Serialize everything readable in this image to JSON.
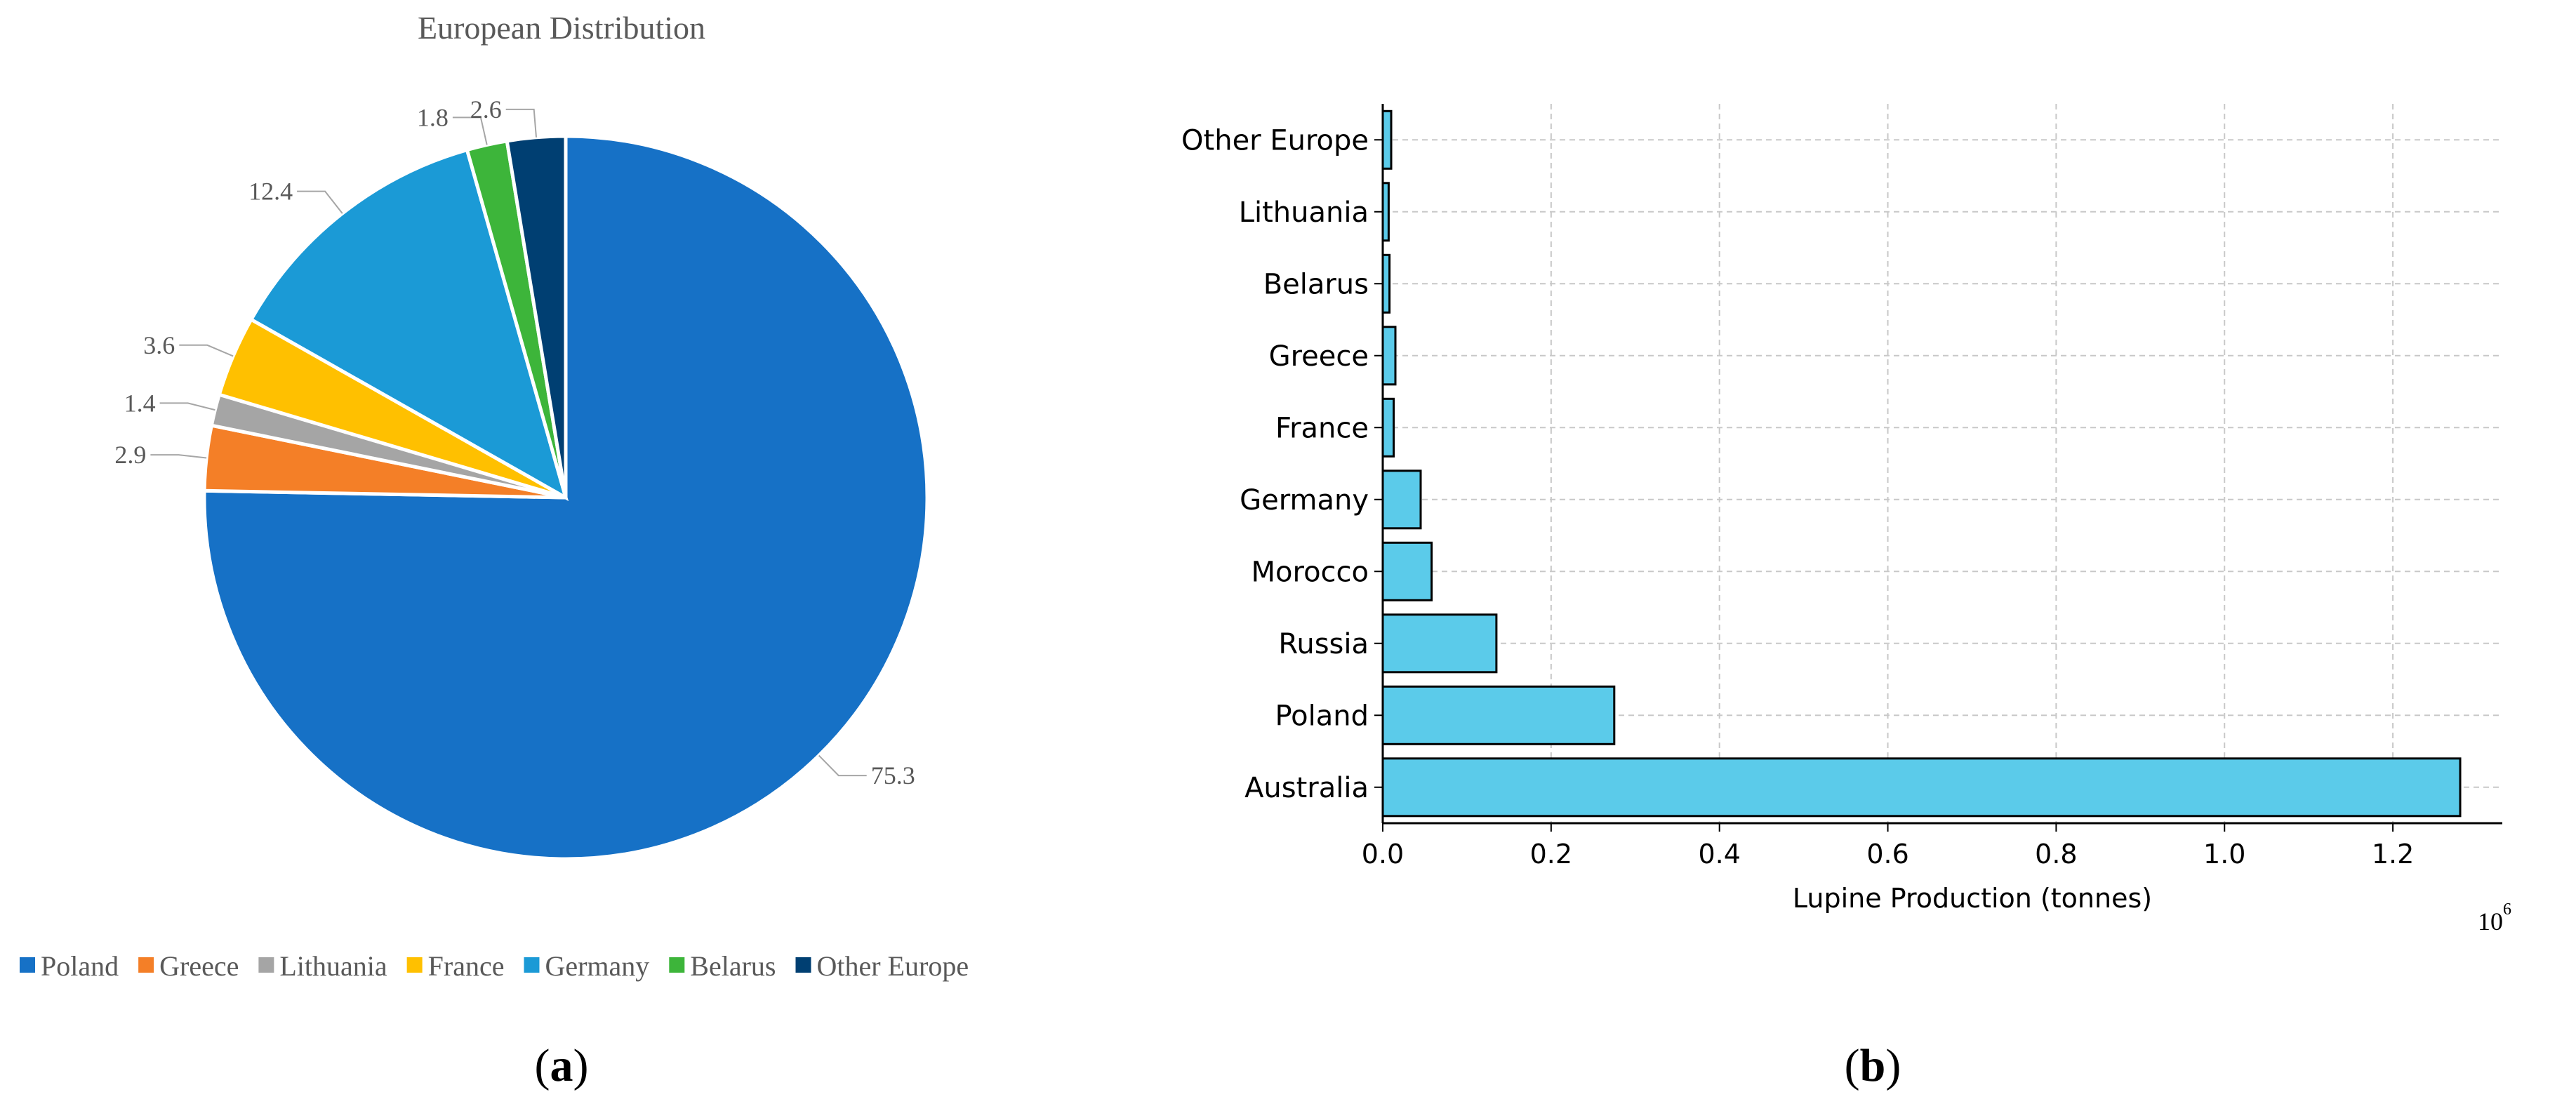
{
  "panel_a": {
    "label_prefix": "(",
    "label_letter": "a",
    "label_suffix": ")"
  },
  "panel_b": {
    "label_prefix": "(",
    "label_letter": "b",
    "label_suffix": ")"
  },
  "chart_data": [
    {
      "type": "pie",
      "title": "European Distribution",
      "categories": [
        "Poland",
        "Greece",
        "Lithuania",
        "France",
        "Germany",
        "Belarus",
        "Other Europe"
      ],
      "values": [
        75.3,
        2.9,
        1.4,
        3.6,
        12.4,
        1.8,
        2.6
      ],
      "value_labels": [
        "75.3",
        "2.9",
        "1.4",
        "3.6",
        "12.4",
        "1.8",
        "2.6"
      ],
      "colors": [
        "#1671c6",
        "#f47f27",
        "#a5a5a5",
        "#ffc000",
        "#1b9ad6",
        "#3db53a",
        "#003f72"
      ],
      "legend_position": "bottom"
    },
    {
      "type": "bar",
      "orientation": "horizontal",
      "categories": [
        "Australia",
        "Poland",
        "Russia",
        "Morocco",
        "Germany",
        "France",
        "Greece",
        "Belarus",
        "Lithuania",
        "Other Europe"
      ],
      "values": [
        1280000,
        275000,
        135000,
        58000,
        45000,
        13000,
        15000,
        8000,
        7000,
        10000
      ],
      "xlabel": "Lupine Production (tonnes)",
      "ylabel": "",
      "xlim": [
        0,
        1330000
      ],
      "xticks": [
        "0.0",
        "0.2",
        "0.4",
        "0.6",
        "0.8",
        "1.0",
        "1.2"
      ],
      "x_multiplier_base": "10",
      "x_multiplier_exp": "6",
      "grid": true,
      "bar_color": "#5bcbea",
      "edge_color": "#000000"
    }
  ]
}
